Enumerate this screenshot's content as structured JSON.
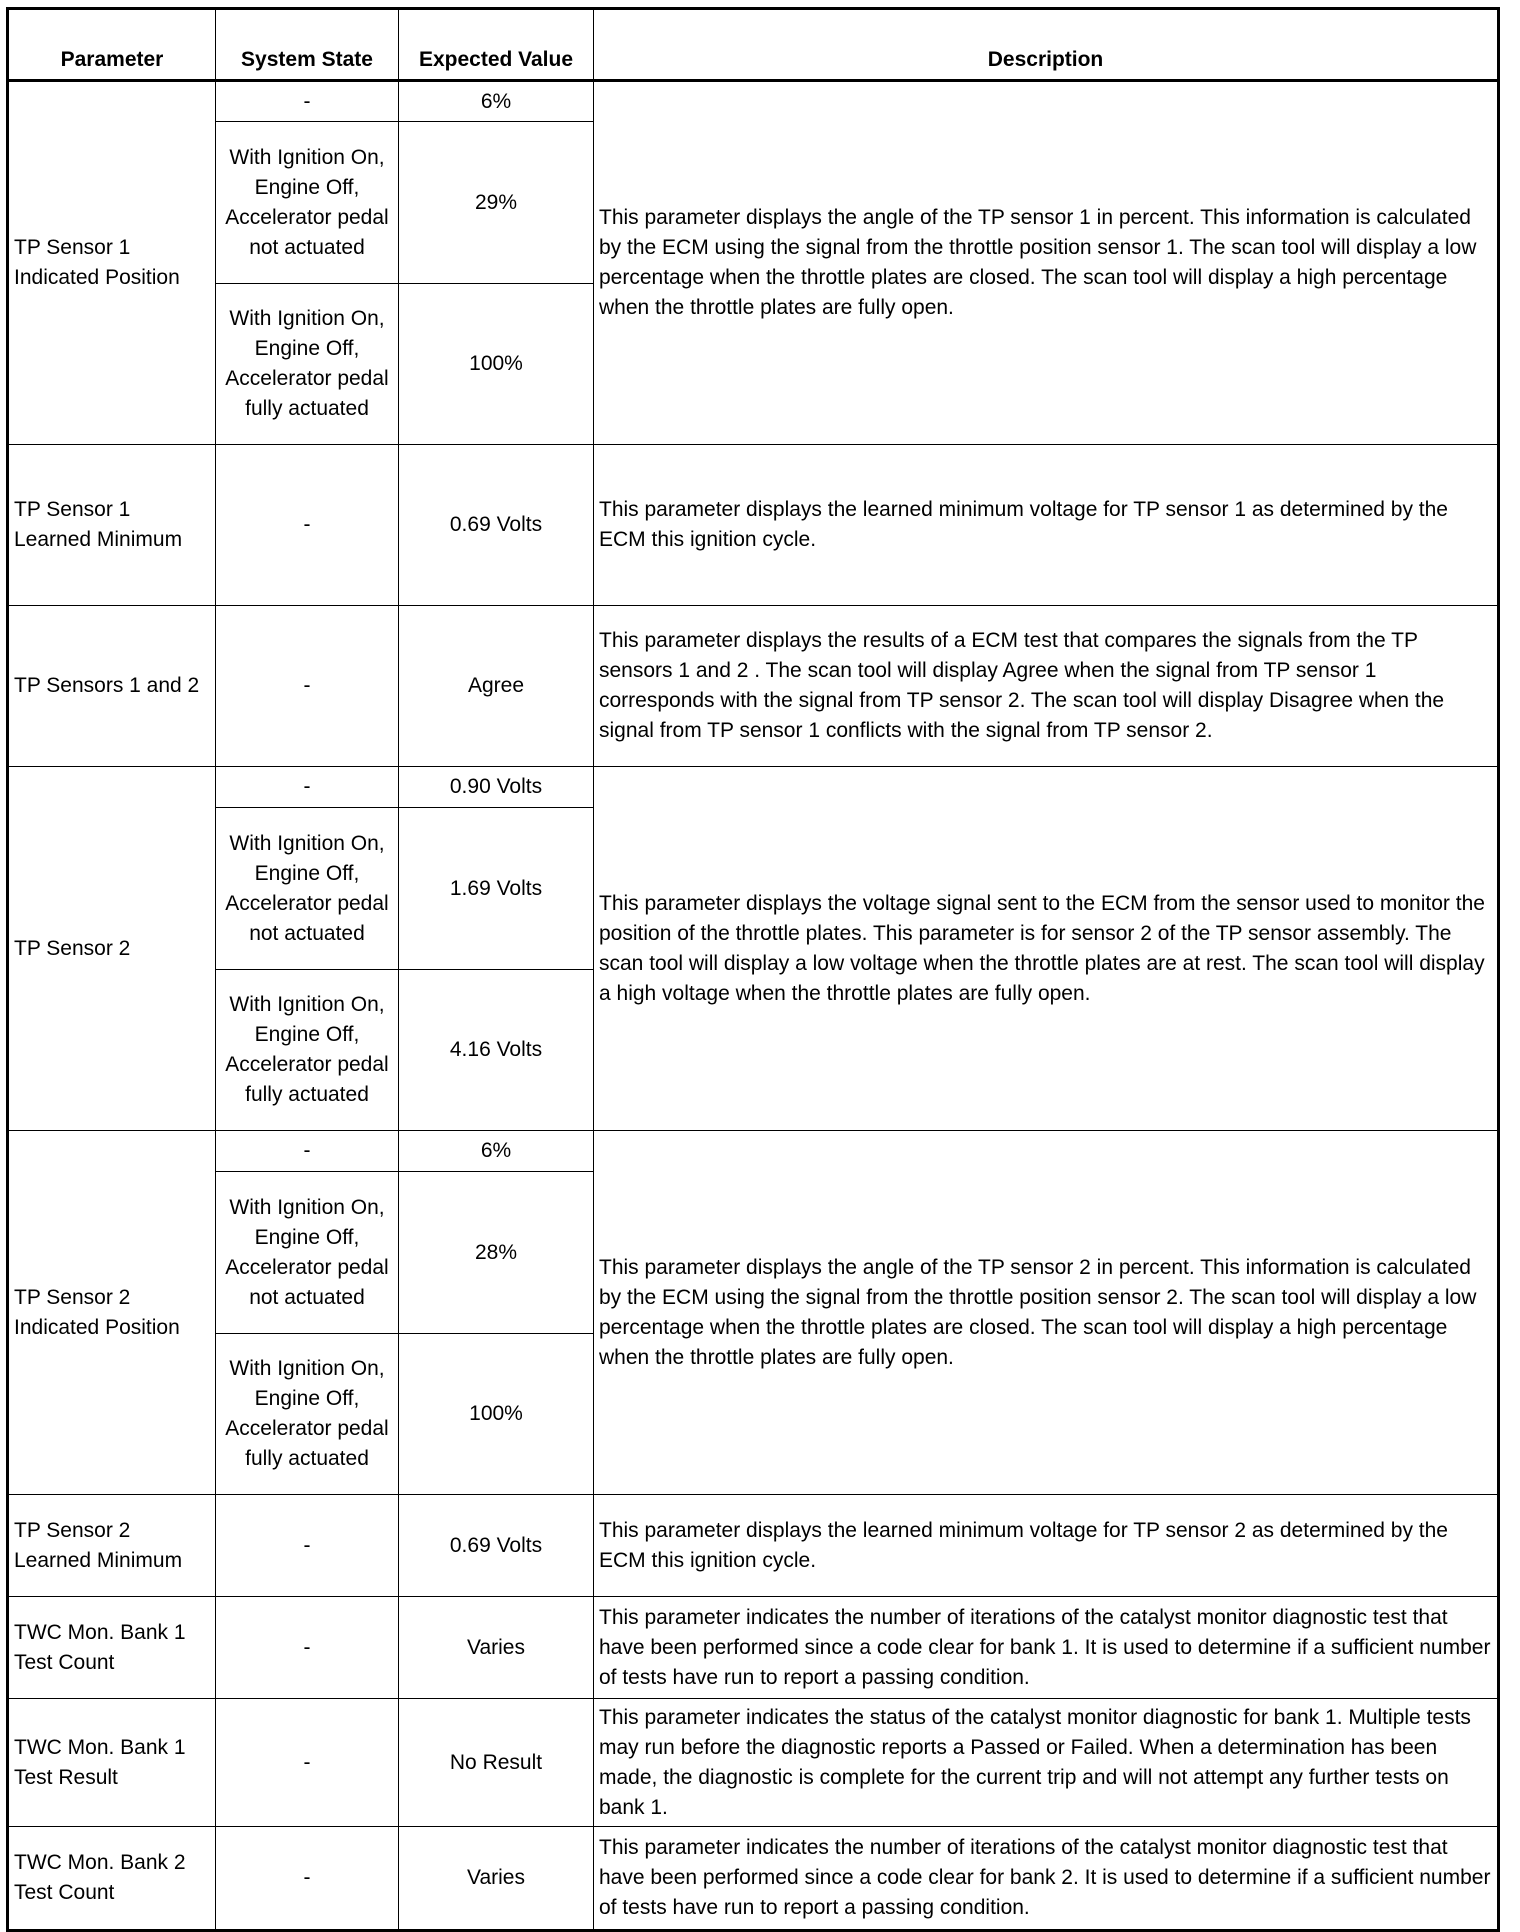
{
  "headers": {
    "parameter": "Parameter",
    "system_state": "System State",
    "expected_value": "Expected Value",
    "description": "Description"
  },
  "rows": [
    {
      "parameter": "TP Sensor 1 Indicated Position",
      "states": [
        {
          "state": "-",
          "value": "6%"
        },
        {
          "state": "With Ignition On, Engine Off, Accelerator pedal not actuated",
          "value": "29%"
        },
        {
          "state": "With Ignition On, Engine Off, Accelerator pedal fully actuated",
          "value": "100%"
        }
      ],
      "description": "This parameter displays the angle of the TP sensor 1 in percent. This information is calculated by the ECM using the signal from the throttle position sensor 1. The scan tool will display a low percentage when the throttle plates are closed. The scan tool will display a high percentage when the throttle plates are fully open."
    },
    {
      "parameter": "TP Sensor 1 Learned Minimum",
      "states": [
        {
          "state": "-",
          "value": "0.69 Volts"
        }
      ],
      "description": "This parameter displays the learned minimum voltage for TP sensor 1 as determined by the ECM this ignition cycle."
    },
    {
      "parameter": "TP Sensors 1 and 2",
      "states": [
        {
          "state": "-",
          "value": "Agree"
        }
      ],
      "description": "This parameter displays the results of a ECM test that compares the signals from the TP sensors 1 and 2 . The scan tool will display Agree when the signal from TP sensor 1 corresponds with the signal from TP sensor 2. The scan tool will display Disagree when the signal from TP sensor 1 conflicts with the signal from TP sensor 2."
    },
    {
      "parameter": "TP Sensor 2",
      "states": [
        {
          "state": "-",
          "value": "0.90 Volts"
        },
        {
          "state": "With Ignition On, Engine Off, Accelerator pedal not actuated",
          "value": "1.69 Volts"
        },
        {
          "state": "With Ignition On, Engine Off, Accelerator pedal fully actuated",
          "value": "4.16 Volts"
        }
      ],
      "description": "This parameter displays the voltage signal sent to the ECM from the sensor used to monitor the position of the throttle plates. This parameter is for sensor 2 of the TP sensor assembly. The scan tool will display a low voltage when the throttle plates are at rest. The scan tool will display a high voltage when the throttle plates are fully open."
    },
    {
      "parameter": "TP Sensor 2 Indicated Position",
      "states": [
        {
          "state": "-",
          "value": "6%"
        },
        {
          "state": "With Ignition On, Engine Off, Accelerator pedal not actuated",
          "value": "28%"
        },
        {
          "state": "With Ignition On, Engine Off, Accelerator pedal fully actuated",
          "value": "100%"
        }
      ],
      "description": "This parameter displays the angle of the TP sensor 2 in percent. This information is calculated by the ECM using the signal from the throttle position sensor 2. The scan tool will display a low percentage when the throttle plates are closed. The scan tool will display a high percentage when the throttle plates are fully open."
    },
    {
      "parameter": "TP Sensor 2 Learned Minimum",
      "states": [
        {
          "state": "-",
          "value": "0.69 Volts"
        }
      ],
      "description": "This parameter displays the learned minimum voltage for TP sensor 2 as determined by the ECM this ignition cycle."
    },
    {
      "parameter": "TWC Mon. Bank 1 Test Count",
      "states": [
        {
          "state": "-",
          "value": "Varies"
        }
      ],
      "description": "This parameter indicates the number of iterations of the catalyst monitor diagnostic test that have been performed since a code clear for bank 1. It is used to determine if a sufficient number of tests have run to report a passing condition."
    },
    {
      "parameter": "TWC Mon. Bank 1 Test Result",
      "states": [
        {
          "state": "-",
          "value": "No Result"
        }
      ],
      "description": "This parameter indicates the status of the catalyst monitor diagnostic for bank 1. Multiple tests may run before the diagnostic reports a Passed or Failed. When a determination has been made, the diagnostic is complete for the current trip and will not attempt any further tests on bank 1."
    },
    {
      "parameter": "TWC Mon. Bank 2 Test Count",
      "states": [
        {
          "state": "-",
          "value": "Varies"
        }
      ],
      "description": "This parameter indicates the number of iterations of the catalyst monitor diagnostic test that have been performed since a code clear for bank 2. It is used to determine if a sufficient number of tests have run to report a passing condition."
    }
  ]
}
